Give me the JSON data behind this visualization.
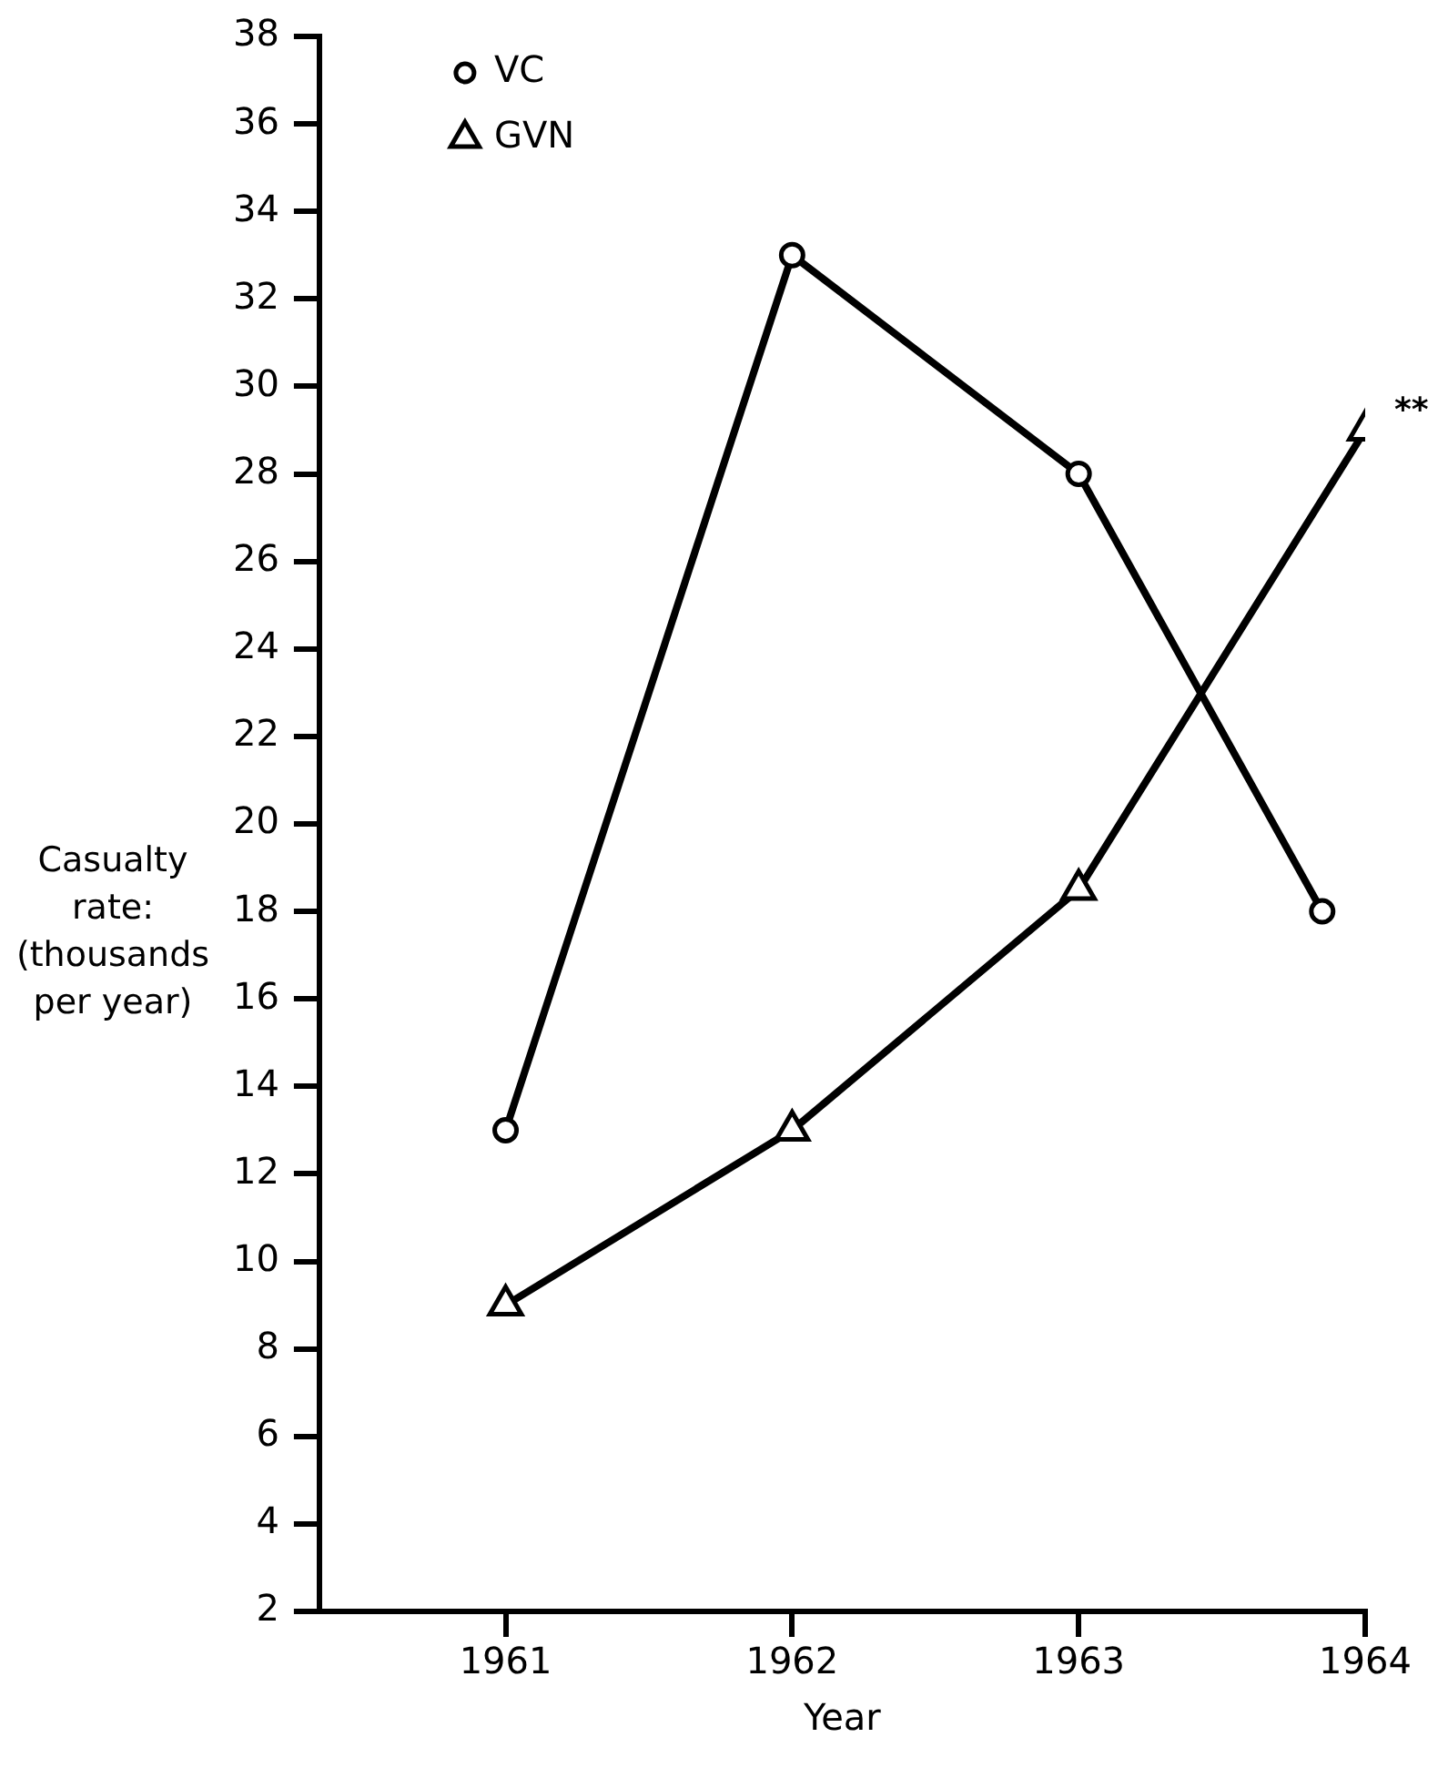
{
  "chart_data": {
    "type": "line",
    "xlabel": "Year",
    "ylabel": "Casualty rate: (thousands per year)",
    "x": [
      1961,
      1962,
      1963,
      1964
    ],
    "series": [
      {
        "name": "VC",
        "color": "#000000",
        "marker": "circle",
        "x": [
          1961,
          1962,
          1963,
          1963.85
        ],
        "values": [
          13,
          33,
          28,
          18
        ]
      },
      {
        "name": "GVN",
        "color": "#000000",
        "marker": "triangle",
        "values": [
          9,
          13,
          18.5,
          29
        ]
      }
    ],
    "xlim": [
      1960.35,
      1964
    ],
    "xticks": [
      1961,
      1962,
      1963,
      1964
    ],
    "ylim": [
      2,
      38
    ],
    "yticks": [
      2,
      4,
      6,
      8,
      10,
      12,
      14,
      16,
      18,
      20,
      22,
      24,
      26,
      28,
      30,
      32,
      34,
      36,
      38
    ],
    "grid": false,
    "legend": "top left",
    "annotations": [
      {
        "text": "**",
        "x": 1964,
        "y": 29
      }
    ]
  }
}
